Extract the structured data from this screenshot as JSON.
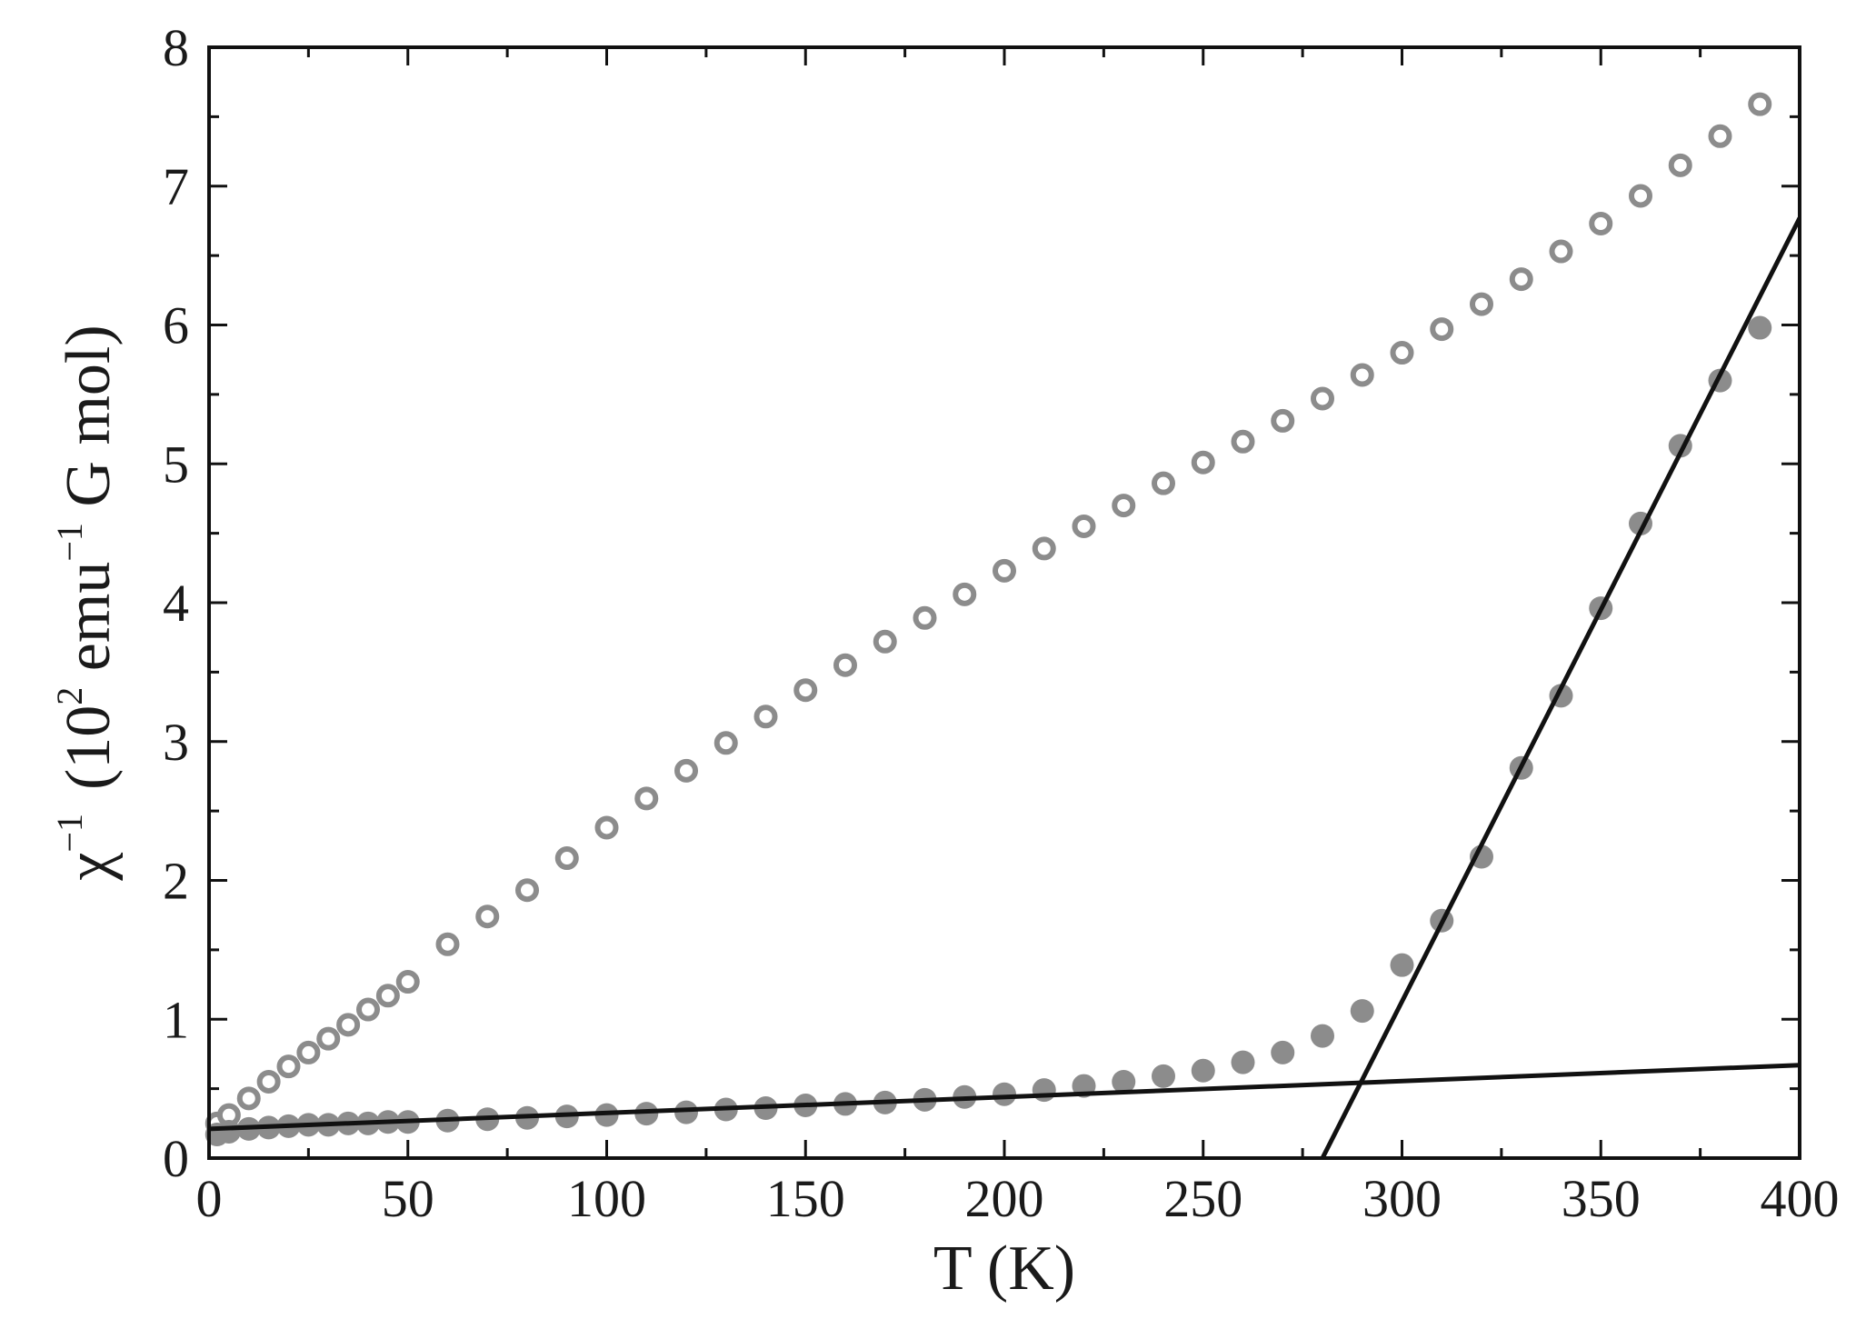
{
  "chart_data": {
    "type": "scatter",
    "xlabel": "T (K)",
    "ylabel": {
      "symbol": "χ",
      "symbol_exp": "−1",
      "paren_open": "(10",
      "exp_a": "2",
      "mid": " emu",
      "exp_b": "−1",
      "tail": " G mol)"
    },
    "xlim": [
      0,
      400
    ],
    "ylim": [
      0,
      8
    ],
    "x_ticks": [
      0,
      50,
      100,
      150,
      200,
      250,
      300,
      350,
      400
    ],
    "y_ticks": [
      0,
      1,
      2,
      3,
      4,
      5,
      6,
      7,
      8
    ],
    "grid": false,
    "series": [
      {
        "marker": "open-circle",
        "color": "#8c8c8c",
        "x": [
          2,
          5,
          10,
          15,
          20,
          25,
          30,
          35,
          40,
          45,
          50,
          60,
          70,
          80,
          90,
          100,
          110,
          120,
          130,
          140,
          150,
          160,
          170,
          180,
          190,
          200,
          210,
          220,
          230,
          240,
          250,
          260,
          270,
          280,
          290,
          300,
          310,
          320,
          330,
          340,
          350,
          360,
          370,
          380,
          390
        ],
        "y": [
          0.25,
          0.31,
          0.43,
          0.55,
          0.66,
          0.76,
          0.86,
          0.96,
          1.07,
          1.17,
          1.27,
          1.54,
          1.74,
          1.93,
          2.16,
          2.38,
          2.59,
          2.79,
          2.99,
          3.18,
          3.37,
          3.55,
          3.72,
          3.89,
          4.06,
          4.23,
          4.39,
          4.55,
          4.7,
          4.86,
          5.01,
          5.16,
          5.31,
          5.47,
          5.64,
          5.8,
          5.97,
          6.15,
          6.33,
          6.53,
          6.73,
          6.93,
          7.15,
          7.36,
          7.59
        ]
      },
      {
        "marker": "filled-circle",
        "color": "#8c8c8c",
        "x": [
          2,
          5,
          10,
          15,
          20,
          25,
          30,
          35,
          40,
          45,
          50,
          60,
          70,
          80,
          90,
          100,
          110,
          120,
          130,
          140,
          150,
          160,
          170,
          180,
          190,
          200,
          210,
          220,
          230,
          240,
          250,
          260,
          270,
          280,
          290,
          300,
          310,
          320,
          330,
          340,
          350,
          360,
          370,
          380,
          390
        ],
        "y": [
          0.17,
          0.19,
          0.21,
          0.22,
          0.23,
          0.24,
          0.24,
          0.25,
          0.25,
          0.26,
          0.26,
          0.27,
          0.28,
          0.29,
          0.3,
          0.31,
          0.32,
          0.33,
          0.35,
          0.36,
          0.38,
          0.39,
          0.4,
          0.42,
          0.44,
          0.46,
          0.49,
          0.52,
          0.55,
          0.59,
          0.63,
          0.69,
          0.76,
          0.88,
          1.06,
          1.39,
          1.71,
          2.17,
          2.81,
          3.33,
          3.96,
          4.57,
          5.13,
          5.6,
          5.98
        ]
      },
      {
        "marker": "line",
        "color": "#111111",
        "x": [
          0,
          400
        ],
        "y": [
          0.21,
          0.67
        ]
      },
      {
        "marker": "line",
        "color": "#111111",
        "x": [
          280,
          400
        ],
        "y": [
          0,
          6.77
        ]
      }
    ]
  }
}
